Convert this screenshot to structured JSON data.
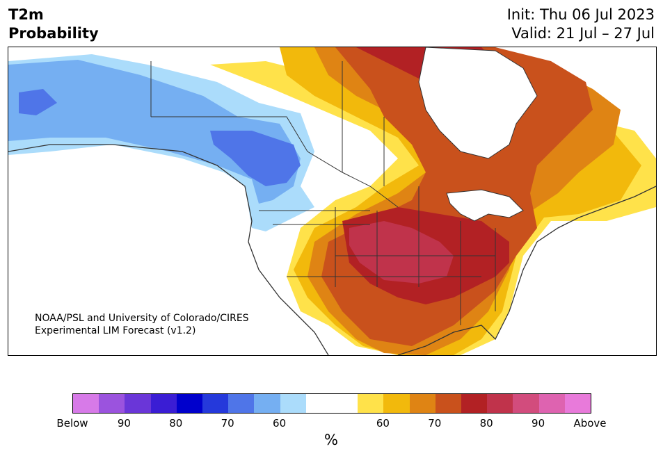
{
  "header": {
    "variable": "T2m",
    "product": "Probability",
    "init": "Init: Thu 06 Jul 2023",
    "valid": "Valid: 21 Jul – 27 Jul"
  },
  "map": {
    "region": "North America",
    "credit_line1": "NOAA/PSL and University of Colorado/CIRES",
    "credit_line2": "Experimental LIM Forecast (v1.2)"
  },
  "colorbar": {
    "unit": "%",
    "colors": [
      "#d77ae8",
      "#9b53de",
      "#6a36d8",
      "#3a1dd4",
      "#0000cc",
      "#2539db",
      "#4f75e8",
      "#75aff2",
      "#abdcfb",
      "#ffffff",
      "#ffffff",
      "#ffe24a",
      "#f2b90c",
      "#df8414",
      "#c9511c",
      "#b22124",
      "#c0334b",
      "#d24c7d",
      "#de63b0",
      "#e87ada"
    ],
    "tick_labels": [
      "Below",
      "90",
      "80",
      "70",
      "60",
      "60",
      "70",
      "80",
      "90",
      "Above"
    ]
  },
  "colors": {
    "above_yellow": "#ffe24a",
    "above_gold": "#f2b90c",
    "above_orange": "#df8414",
    "above_rust": "#c9511c",
    "above_red": "#b22124",
    "above_rose": "#c0334b",
    "below_light": "#abdcfb",
    "below_mid": "#75aff2",
    "below_blue": "#4f75e8"
  }
}
